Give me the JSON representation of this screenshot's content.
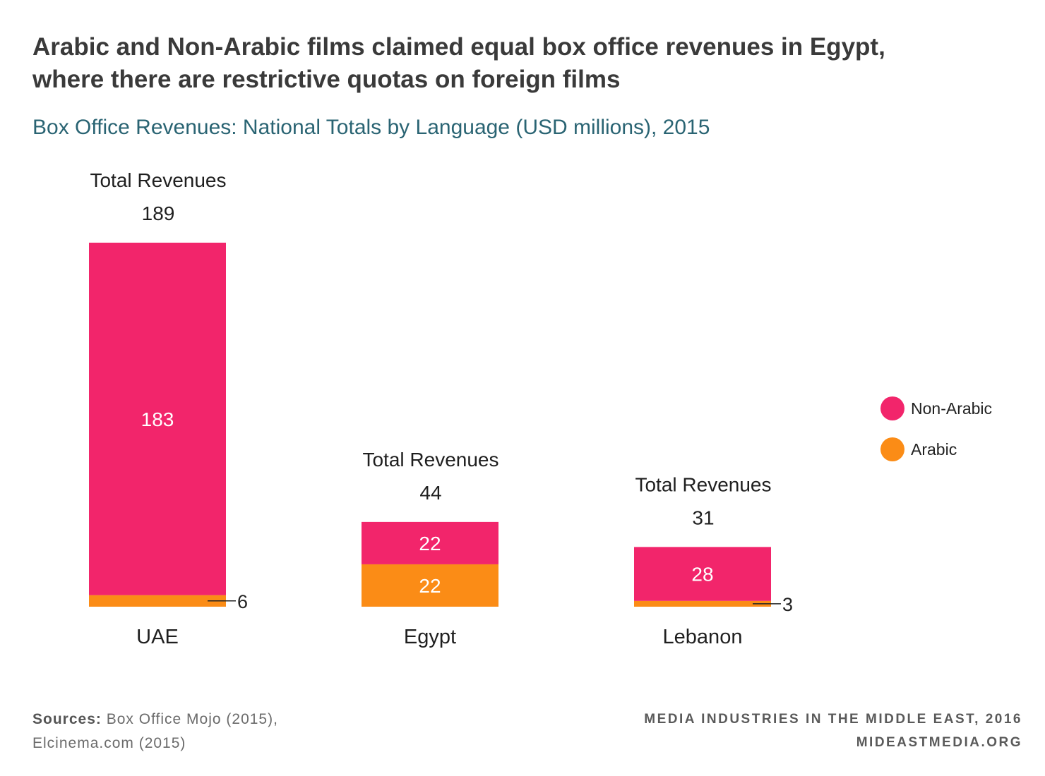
{
  "title_line1": "Arabic and Non-Arabic films claimed equal box office revenues in Egypt,",
  "title_line2": "where there are restrictive quotas on foreign films",
  "subtitle": "Box Office Revenues: National Totals by Language (USD millions), 2015",
  "total_label": "Total Revenues",
  "legend": [
    {
      "label": "Non-Arabic",
      "color": "#f2256b"
    },
    {
      "label": "Arabic",
      "color": "#fb8c16"
    }
  ],
  "sources": {
    "label": "Sources:",
    "line1": "Box Office Mojo (2015),",
    "line2": "Elcinema.com (2015)"
  },
  "footer": {
    "line1": "MEDIA INDUSTRIES IN THE MIDDLE EAST, 2016",
    "line2": "MIDEASTMEDIA.ORG"
  },
  "chart_data": {
    "type": "bar",
    "stacked": true,
    "categories": [
      "UAE",
      "Egypt",
      "Lebanon"
    ],
    "totals": [
      189,
      44,
      31
    ],
    "series": [
      {
        "name": "Non-Arabic",
        "color": "#f2256b",
        "values": [
          183,
          22,
          28
        ]
      },
      {
        "name": "Arabic",
        "color": "#fb8c16",
        "values": [
          6,
          22,
          3
        ]
      }
    ]
  }
}
